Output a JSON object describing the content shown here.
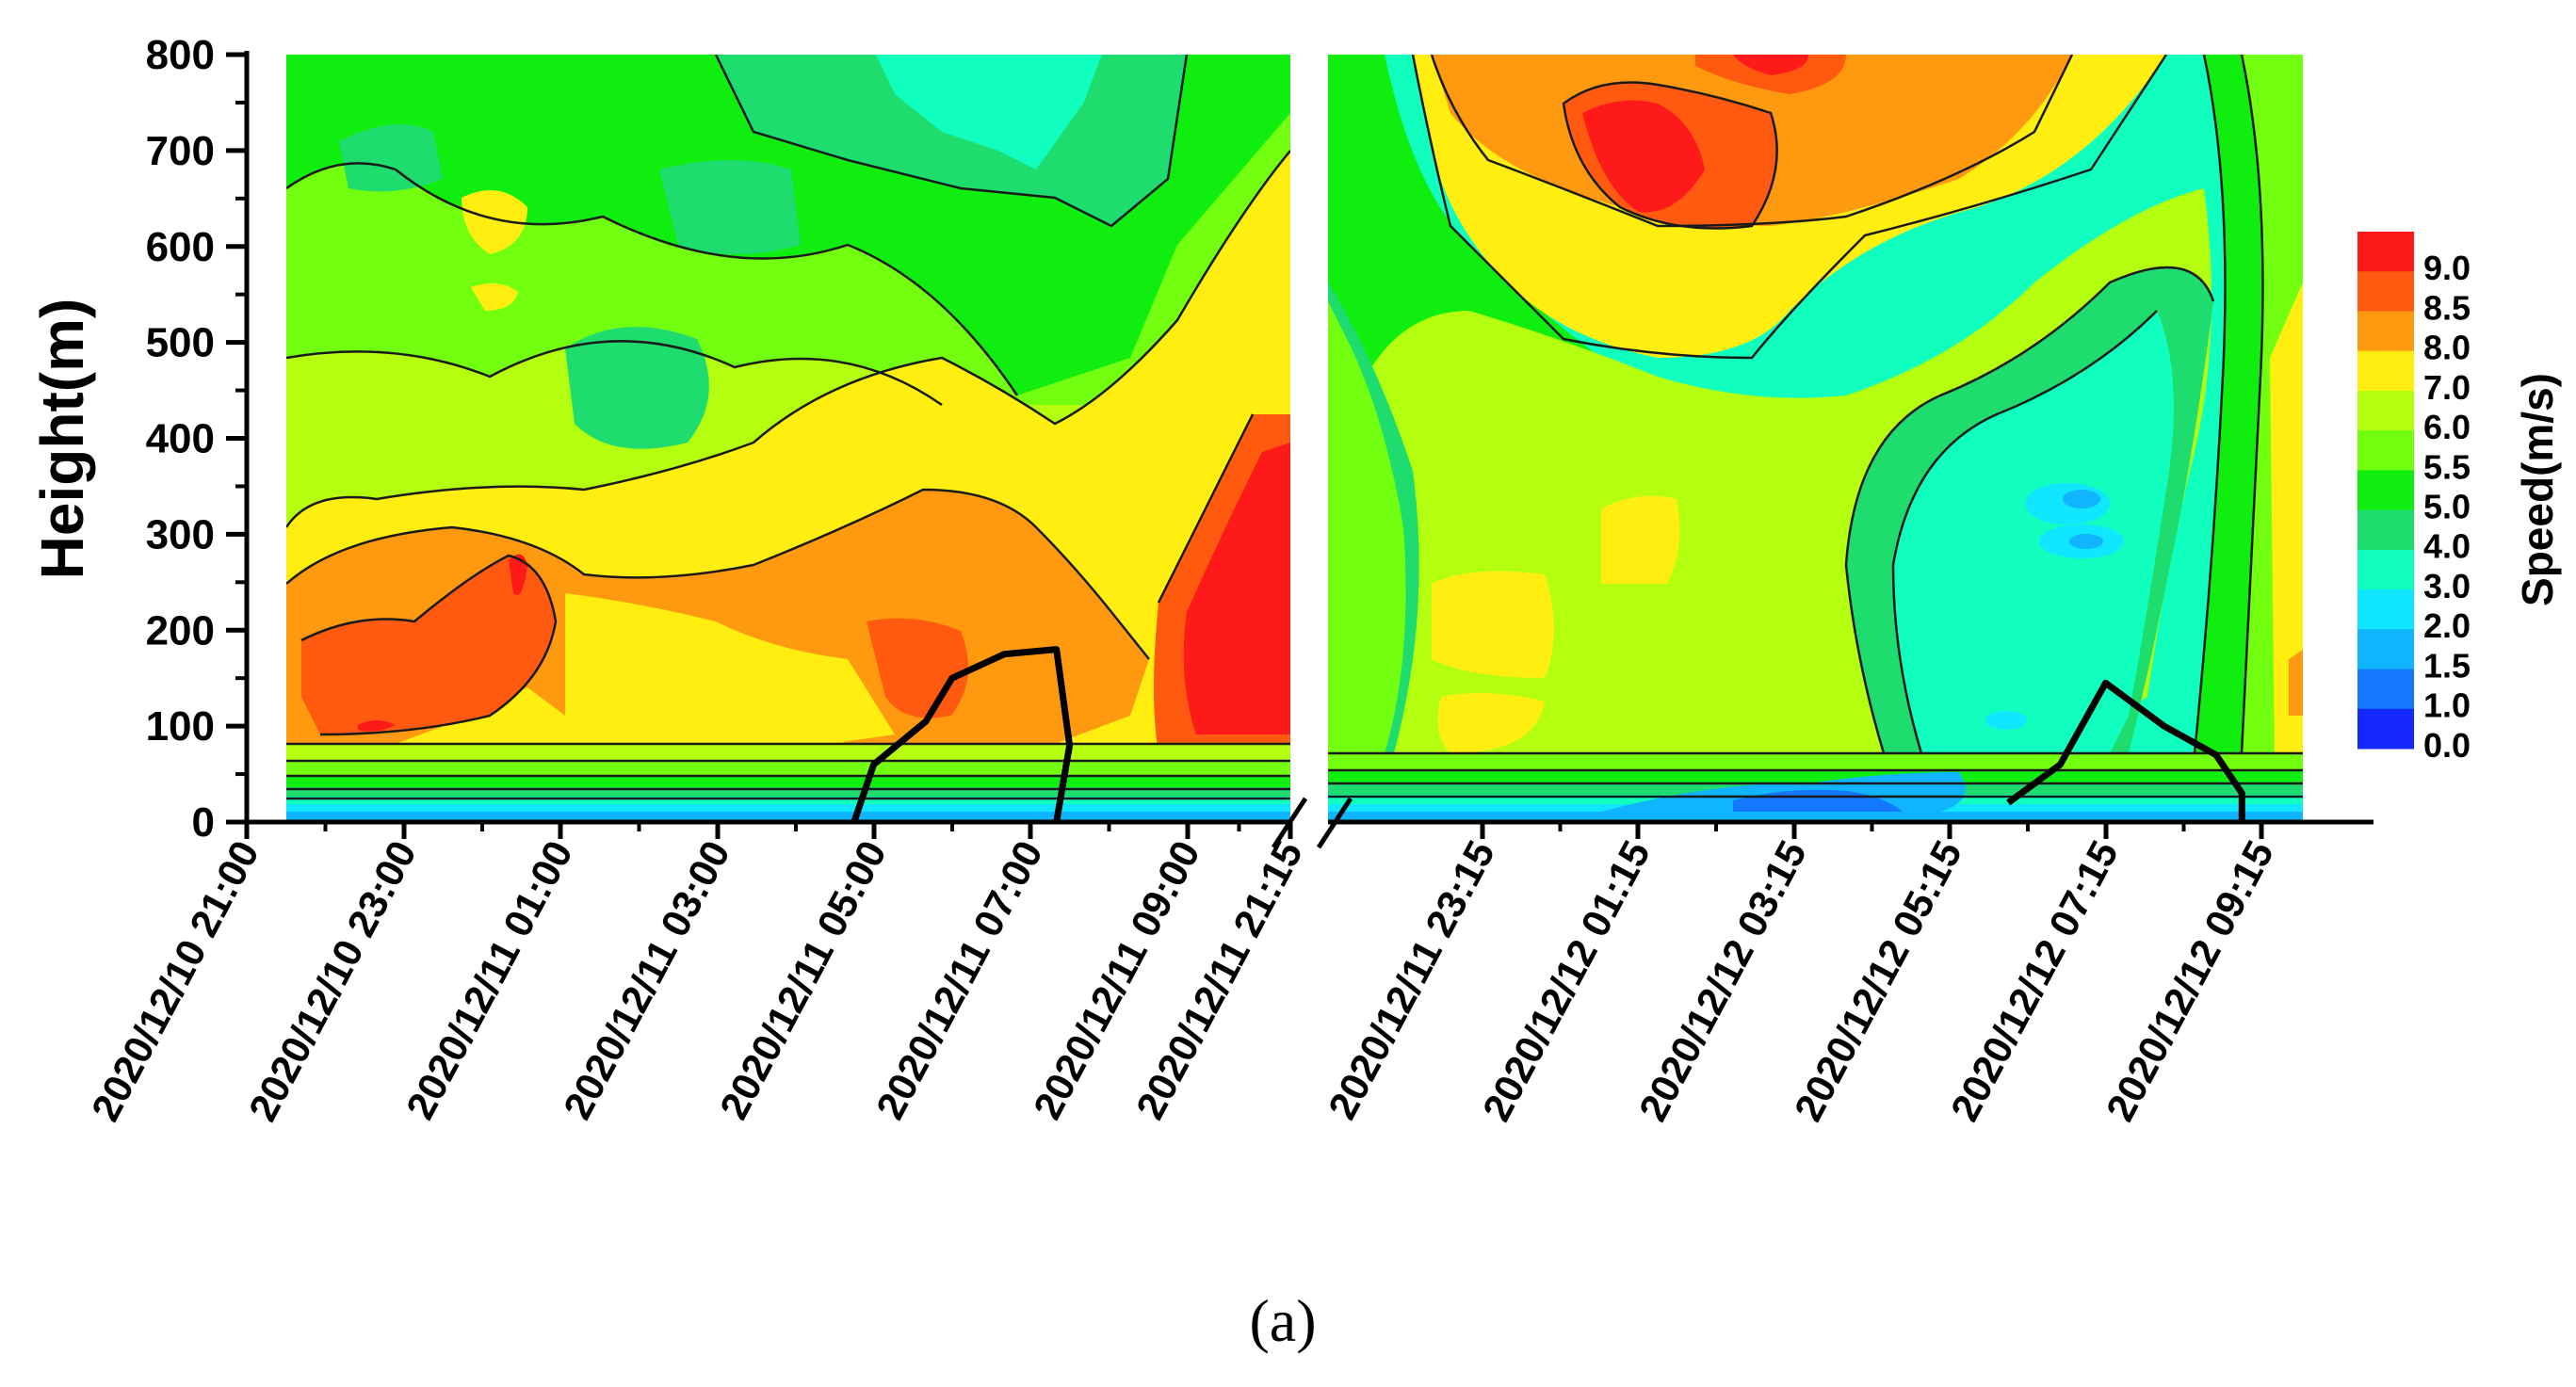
{
  "caption": "(a)",
  "chart_data": {
    "type": "heatmap",
    "subtype": "filled-contour with broken time axis",
    "ylabel": "Height(m)",
    "ylim": [
      0,
      800
    ],
    "yticks": [
      0,
      100,
      200,
      300,
      400,
      500,
      600,
      700,
      800
    ],
    "colorbar": {
      "title": "Speed(m/s)",
      "levels": [
        "9.0",
        "8.5",
        "8.0",
        "7.0",
        "6.0",
        "5.5",
        "5.0",
        "4.0",
        "3.0",
        "2.0",
        "1.5",
        "1.0",
        "0.0"
      ],
      "colors": [
        "#ff1a1a",
        "#ff5a10",
        "#ff9a10",
        "#ffee10",
        "#b4ff10",
        "#73ff10",
        "#10ee10",
        "#1edc6e",
        "#10ffbe",
        "#10e6ff",
        "#10b4ff",
        "#1478ff",
        "#1428ff"
      ]
    },
    "panels": [
      {
        "name": "left",
        "xticks": [
          "2020/12/10 21:00",
          "2020/12/10 23:00",
          "2020/12/11 01:00",
          "2020/12/11 03:00",
          "2020/12/11 05:00",
          "2020/12/11 07:00",
          "2020/12/11 09:00",
          "2020/12/11 21:15"
        ],
        "max_wind_core": {
          "time": "2020/12/11 09:00-10:00",
          "height_range_m": [
            100,
            400
          ],
          "speed_ms": 9.0
        },
        "boundary_layer_line_m": [
          {
            "time": "2020/12/11 04:45",
            "height": 0
          },
          {
            "time": "2020/12/11 05:00",
            "height": 60
          },
          {
            "time": "2020/12/11 05:40",
            "height": 105
          },
          {
            "time": "2020/12/11 06:00",
            "height": 150
          },
          {
            "time": "2020/12/11 06:40",
            "height": 175
          },
          {
            "time": "2020/12/11 07:20",
            "height": 180
          },
          {
            "time": "2020/12/11 07:30",
            "height": 80
          },
          {
            "time": "2020/12/11 07:20",
            "height": 0
          }
        ]
      },
      {
        "name": "right",
        "xticks": [
          "2020/12/11 23:15",
          "2020/12/12 01:15",
          "2020/12/12 03:15",
          "2020/12/12 05:15",
          "2020/12/12 07:15",
          "2020/12/12 09:15"
        ],
        "max_wind_core": {
          "time": "2020/12/12 01:00-02:00",
          "height_range_m": [
            600,
            750
          ],
          "speed_ms": 9.0
        },
        "boundary_layer_line_m": [
          {
            "time": "2020/12/12 06:00",
            "height": 20
          },
          {
            "time": "2020/12/12 06:40",
            "height": 60
          },
          {
            "time": "2020/12/12 07:15",
            "height": 145
          },
          {
            "time": "2020/12/12 08:00",
            "height": 100
          },
          {
            "time": "2020/12/12 08:40",
            "height": 70
          },
          {
            "time": "2020/12/12 09:00",
            "height": 30
          },
          {
            "time": "2020/12/12 09:00",
            "height": 0
          }
        ]
      }
    ]
  }
}
